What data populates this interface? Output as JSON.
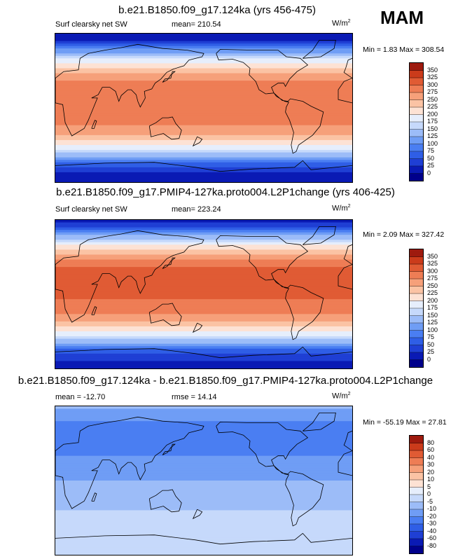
{
  "season": "MAM",
  "chart_data": [
    {
      "type": "heatmap",
      "title": "b.e21.B1850.f09_g17.124ka (yrs 456-475)",
      "left_label": "Surf clearsky net SW",
      "center_label": "mean= 210.54",
      "units_base": "W/m",
      "units_exp": "2",
      "min_label": "Min =   1.83",
      "max_label": "Max = 308.54",
      "mean": 210.54,
      "min": 1.83,
      "max": 308.54,
      "levels": [
        "0",
        "25",
        "50",
        "75",
        "100",
        "125",
        "150",
        "175",
        "200",
        "225",
        "250",
        "275",
        "300",
        "325",
        "350"
      ],
      "colors": [
        "#00008b",
        "#0a1ab4",
        "#1f3fd4",
        "#2f5ee6",
        "#4a7ef2",
        "#6f9df5",
        "#9cbcf8",
        "#c6d9fb",
        "#e6eefc",
        "#fde2d4",
        "#fbc3a4",
        "#f6a07a",
        "#ee7d55",
        "#e05b34",
        "#cb3b1b",
        "#9e1a0e"
      ],
      "lat_profile": [
        [
          90,
          8
        ],
        [
          80,
          28
        ],
        [
          70,
          105
        ],
        [
          60,
          168
        ],
        [
          50,
          215
        ],
        [
          40,
          258
        ],
        [
          30,
          285
        ],
        [
          20,
          296
        ],
        [
          10,
          298
        ],
        [
          0,
          296
        ],
        [
          -10,
          290
        ],
        [
          -20,
          278
        ],
        [
          -30,
          258
        ],
        [
          -40,
          222
        ],
        [
          -50,
          175
        ],
        [
          -60,
          118
        ],
        [
          -70,
          52
        ],
        [
          -80,
          22
        ],
        [
          -90,
          8
        ]
      ]
    },
    {
      "type": "heatmap",
      "title": "b.e21.B1850.f09_g17.PMIP4-127ka.proto004.L2P1change (yrs 406-425)",
      "left_label": "Surf clearsky net SW",
      "center_label": "mean= 223.24",
      "units_base": "W/m",
      "units_exp": "2",
      "min_label": "Min =   2.09",
      "max_label": "Max = 327.42",
      "mean": 223.24,
      "min": 2.09,
      "max": 327.42,
      "levels": [
        "0",
        "25",
        "50",
        "75",
        "100",
        "125",
        "150",
        "175",
        "200",
        "225",
        "250",
        "275",
        "300",
        "325",
        "350"
      ],
      "colors": [
        "#00008b",
        "#0a1ab4",
        "#1f3fd4",
        "#2f5ee6",
        "#4a7ef2",
        "#6f9df5",
        "#9cbcf8",
        "#c6d9fb",
        "#e6eefc",
        "#fde2d4",
        "#fbc3a4",
        "#f6a07a",
        "#ee7d55",
        "#e05b34",
        "#cb3b1b",
        "#9e1a0e"
      ],
      "lat_profile": [
        [
          90,
          15
        ],
        [
          80,
          48
        ],
        [
          70,
          130
        ],
        [
          60,
          195
        ],
        [
          50,
          245
        ],
        [
          40,
          285
        ],
        [
          30,
          308
        ],
        [
          20,
          315
        ],
        [
          10,
          312
        ],
        [
          0,
          305
        ],
        [
          -10,
          296
        ],
        [
          -20,
          282
        ],
        [
          -30,
          260
        ],
        [
          -40,
          225
        ],
        [
          -50,
          178
        ],
        [
          -60,
          120
        ],
        [
          -70,
          55
        ],
        [
          -80,
          25
        ],
        [
          -90,
          10
        ]
      ]
    },
    {
      "type": "heatmap",
      "title": "b.e21.B1850.f09_g17.124ka - b.e21.B1850.f09_g17.PMIP4-127ka.proto004.L2P1change",
      "left_label": "mean = -12.70",
      "center_label": "rmse =  14.14",
      "units_base": "W/m",
      "units_exp": "2",
      "min_label": "Min = -55.19",
      "max_label": "Max =  27.81",
      "mean": -12.7,
      "rmse": 14.14,
      "min": -55.19,
      "max": 27.81,
      "levels": [
        "-80",
        "-60",
        "-40",
        "-30",
        "-20",
        "-10",
        "-5",
        "0",
        "5",
        "10",
        "20",
        "30",
        "40",
        "60",
        "80"
      ],
      "colors": [
        "#00008b",
        "#0a1ab4",
        "#1f3fd4",
        "#2f5ee6",
        "#4a7ef2",
        "#6f9df5",
        "#9cbcf8",
        "#c6d9fb",
        "#e6eefc",
        "#fde2d4",
        "#fbc3a4",
        "#f6a07a",
        "#ee7d55",
        "#e05b34",
        "#cb3b1b",
        "#9e1a0e"
      ],
      "lat_profile": [
        [
          90,
          -8
        ],
        [
          80,
          -15
        ],
        [
          70,
          -22
        ],
        [
          60,
          -25
        ],
        [
          50,
          -27
        ],
        [
          40,
          -26
        ],
        [
          30,
          -20
        ],
        [
          20,
          -18
        ],
        [
          10,
          -14
        ],
        [
          0,
          -10
        ],
        [
          -10,
          -9
        ],
        [
          -20,
          -8
        ],
        [
          -30,
          -6
        ],
        [
          -40,
          -4
        ],
        [
          -50,
          -3
        ],
        [
          -60,
          -2
        ],
        [
          -70,
          -1
        ],
        [
          -80,
          -1
        ],
        [
          -90,
          -1
        ]
      ]
    }
  ]
}
